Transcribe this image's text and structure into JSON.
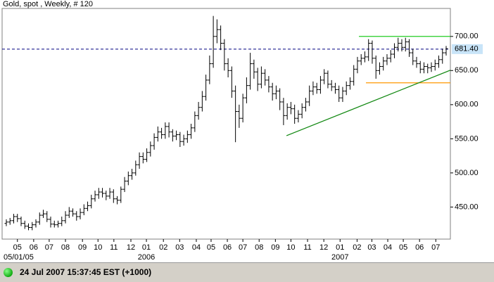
{
  "chart_data": {
    "type": "ohlc",
    "title": "Gold, spot , Weekly, # 120",
    "color": "#000000",
    "open": [
      426,
      428,
      430,
      436,
      433,
      426,
      422,
      420,
      424,
      428,
      438,
      440,
      432,
      425,
      424,
      426,
      430,
      438,
      444,
      440,
      436,
      442,
      448,
      452,
      462,
      468,
      472,
      470,
      466,
      472,
      462,
      460,
      476,
      488,
      496,
      500,
      512,
      524,
      520,
      530,
      540,
      552,
      560,
      556,
      568,
      560,
      554,
      556,
      546,
      550,
      556,
      566,
      584,
      596,
      612,
      636,
      660,
      700,
      710,
      690,
      660,
      650,
      620,
      590,
      580,
      610,
      628,
      660,
      648,
      630,
      646,
      636,
      626,
      616,
      620,
      604,
      584,
      596,
      594,
      580,
      586,
      596,
      604,
      620,
      626,
      622,
      636,
      646,
      630,
      626,
      622,
      610,
      620,
      628,
      634,
      652,
      664,
      668,
      670,
      690,
      668,
      650,
      656,
      664,
      668,
      674,
      684,
      690,
      684,
      692,
      676,
      664,
      660,
      652,
      656,
      654,
      656,
      660,
      666,
      676
    ],
    "high": [
      432,
      434,
      440,
      440,
      436,
      430,
      426,
      428,
      432,
      442,
      446,
      444,
      436,
      430,
      430,
      436,
      444,
      450,
      448,
      444,
      448,
      454,
      458,
      468,
      474,
      478,
      478,
      474,
      478,
      476,
      466,
      480,
      494,
      502,
      506,
      518,
      530,
      530,
      536,
      546,
      558,
      568,
      566,
      574,
      574,
      564,
      562,
      560,
      556,
      562,
      572,
      590,
      604,
      620,
      644,
      672,
      730,
      725,
      716,
      696,
      668,
      656,
      628,
      600,
      616,
      640,
      676,
      666,
      654,
      656,
      652,
      642,
      632,
      628,
      624,
      610,
      602,
      604,
      600,
      592,
      602,
      610,
      628,
      634,
      632,
      642,
      652,
      650,
      636,
      632,
      628,
      626,
      634,
      640,
      658,
      670,
      674,
      678,
      696,
      694,
      672,
      662,
      670,
      674,
      680,
      690,
      698,
      696,
      698,
      696,
      682,
      670,
      664,
      662,
      660,
      662,
      666,
      672,
      682,
      686
    ],
    "low": [
      422,
      424,
      426,
      428,
      422,
      418,
      416,
      416,
      420,
      424,
      434,
      428,
      420,
      420,
      420,
      422,
      426,
      434,
      436,
      430,
      432,
      438,
      444,
      448,
      458,
      462,
      464,
      460,
      462,
      456,
      454,
      456,
      472,
      482,
      490,
      496,
      506,
      514,
      516,
      524,
      534,
      546,
      550,
      550,
      552,
      546,
      548,
      538,
      540,
      544,
      550,
      560,
      578,
      590,
      606,
      630,
      654,
      690,
      680,
      650,
      640,
      610,
      545,
      566,
      574,
      602,
      622,
      638,
      620,
      624,
      628,
      618,
      606,
      608,
      592,
      570,
      578,
      586,
      572,
      574,
      580,
      590,
      598,
      614,
      616,
      616,
      630,
      624,
      620,
      616,
      604,
      604,
      614,
      622,
      628,
      646,
      658,
      662,
      664,
      660,
      638,
      644,
      650,
      658,
      662,
      668,
      678,
      678,
      678,
      670,
      658,
      654,
      646,
      646,
      646,
      648,
      650,
      654,
      660,
      672
    ],
    "close": [
      428,
      430,
      436,
      433,
      426,
      422,
      420,
      424,
      428,
      438,
      440,
      432,
      425,
      424,
      426,
      430,
      438,
      444,
      440,
      436,
      442,
      448,
      452,
      462,
      468,
      472,
      470,
      466,
      472,
      462,
      460,
      476,
      488,
      496,
      500,
      512,
      524,
      520,
      530,
      540,
      552,
      560,
      556,
      568,
      560,
      554,
      556,
      546,
      550,
      556,
      566,
      584,
      596,
      612,
      636,
      660,
      700,
      710,
      690,
      660,
      650,
      620,
      590,
      580,
      610,
      628,
      660,
      648,
      630,
      646,
      636,
      626,
      616,
      620,
      604,
      584,
      596,
      594,
      580,
      586,
      596,
      604,
      620,
      626,
      622,
      636,
      646,
      630,
      626,
      622,
      610,
      620,
      628,
      634,
      652,
      664,
      668,
      670,
      690,
      668,
      650,
      656,
      664,
      668,
      674,
      684,
      690,
      684,
      692,
      676,
      664,
      660,
      652,
      656,
      654,
      656,
      660,
      666,
      676,
      682
    ],
    "xlim": [
      -1.14,
      120.14
    ],
    "ylim": [
      403,
      741
    ],
    "yticks": [
      {
        "value": 450,
        "label": "450.00"
      },
      {
        "value": 500,
        "label": "500.00"
      },
      {
        "value": 550,
        "label": "550.00"
      },
      {
        "value": 600,
        "label": "600.00"
      },
      {
        "value": 650,
        "label": "650.00"
      },
      {
        "value": 700,
        "label": "700.00"
      }
    ],
    "xticks": [
      {
        "value": 3.0,
        "label": "05"
      },
      {
        "value": 7.4,
        "label": "06"
      },
      {
        "value": 11.6,
        "label": "07"
      },
      {
        "value": 16.0,
        "label": "08"
      },
      {
        "value": 20.6,
        "label": "09"
      },
      {
        "value": 24.8,
        "label": "10"
      },
      {
        "value": 29.1,
        "label": "11"
      },
      {
        "value": 33.7,
        "label": "12"
      },
      {
        "value": 37.9,
        "label": "01"
      },
      {
        "value": 42.5,
        "label": "02"
      },
      {
        "value": 46.9,
        "label": "03"
      },
      {
        "value": 51.4,
        "label": "04"
      },
      {
        "value": 55.4,
        "label": "05"
      },
      {
        "value": 59.8,
        "label": "06"
      },
      {
        "value": 64.0,
        "label": "07"
      },
      {
        "value": 68.4,
        "label": "08"
      },
      {
        "value": 72.8,
        "label": "09"
      },
      {
        "value": 77.0,
        "label": "10"
      },
      {
        "value": 81.5,
        "label": "11"
      },
      {
        "value": 85.9,
        "label": "12"
      },
      {
        "value": 90.3,
        "label": "01"
      },
      {
        "value": 94.9,
        "label": "02"
      },
      {
        "value": 98.9,
        "label": "03"
      },
      {
        "value": 103.2,
        "label": "04"
      },
      {
        "value": 107.4,
        "label": "05"
      },
      {
        "value": 111.8,
        "label": "06"
      },
      {
        "value": 116.2,
        "label": "07"
      }
    ],
    "xlabels_lower": [
      {
        "value": -0.76,
        "label": "05/01/05"
      },
      {
        "value": 37.9,
        "label": "2006"
      },
      {
        "value": 90.3,
        "label": "2007"
      }
    ],
    "last_price": {
      "value": 681.4,
      "label": "681.40",
      "color": "#000080"
    },
    "lines": [
      {
        "x": [
          95.4,
          120.14
        ],
        "y": [
          700,
          700
        ],
        "color": "#22cc22"
      },
      {
        "x": [
          97.3,
          120.14
        ],
        "y": [
          632,
          632
        ],
        "color": "#ff9900"
      },
      {
        "x": [
          75.8,
          120.14
        ],
        "y": [
          554.6,
          650.5
        ],
        "color": "#118811"
      }
    ]
  },
  "status": "24 Jul 2007 15:37:45  EST (+1000)"
}
